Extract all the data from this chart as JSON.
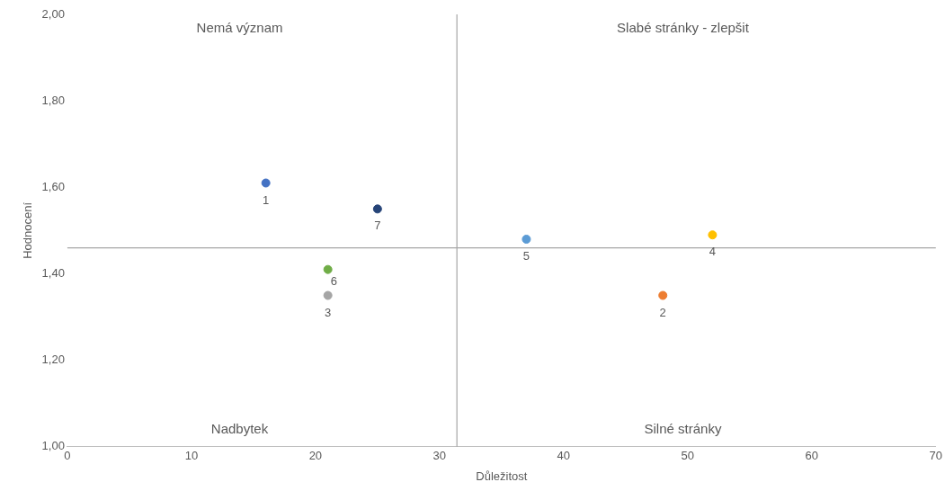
{
  "chart_data": {
    "type": "scatter",
    "xlabel": "Důležitost",
    "ylabel": "Hodnocení",
    "xlim": [
      0,
      70
    ],
    "xticks": [
      0,
      10,
      20,
      30,
      40,
      50,
      60,
      70
    ],
    "ylim": [
      1,
      2
    ],
    "yticks": [
      {
        "value": 1,
        "label": "1,00"
      },
      {
        "value": 1.2,
        "label": "1,20"
      },
      {
        "value": 1.4,
        "label": "1,40"
      },
      {
        "value": 1.6,
        "label": "1,60"
      },
      {
        "value": 1.8,
        "label": "1,80"
      },
      {
        "value": 2,
        "label": "2,00"
      }
    ],
    "grid": false,
    "legend": false,
    "marker": "circle",
    "series": [
      {
        "name": "1",
        "color": "#4472c4",
        "x": [
          16
        ],
        "values": [
          1.61
        ]
      },
      {
        "name": "2",
        "color": "#ed7d31",
        "x": [
          48
        ],
        "values": [
          1.35
        ]
      },
      {
        "name": "3",
        "color": "#a5a5a5",
        "x": [
          21
        ],
        "values": [
          1.35
        ]
      },
      {
        "name": "4",
        "color": "#ffc000",
        "x": [
          52
        ],
        "values": [
          1.49
        ]
      },
      {
        "name": "5",
        "color": "#5b9bd5",
        "x": [
          37
        ],
        "values": [
          1.48
        ]
      },
      {
        "name": "6",
        "color": "#70ad47",
        "x": [
          21
        ],
        "values": [
          1.41
        ]
      },
      {
        "name": "7",
        "color": "#264478",
        "x": [
          25
        ],
        "values": [
          1.55
        ]
      }
    ],
    "ref_lines": [
      {
        "axis": "x",
        "value": 31.4,
        "color": "#a6a6a6"
      },
      {
        "axis": "y",
        "value": 1.46,
        "color": "#a6a6a6"
      }
    ],
    "annotations": [
      "Nemá význam",
      "Slabé stránky - zlepšit",
      "Nadbytek",
      "Silné stránky"
    ]
  }
}
